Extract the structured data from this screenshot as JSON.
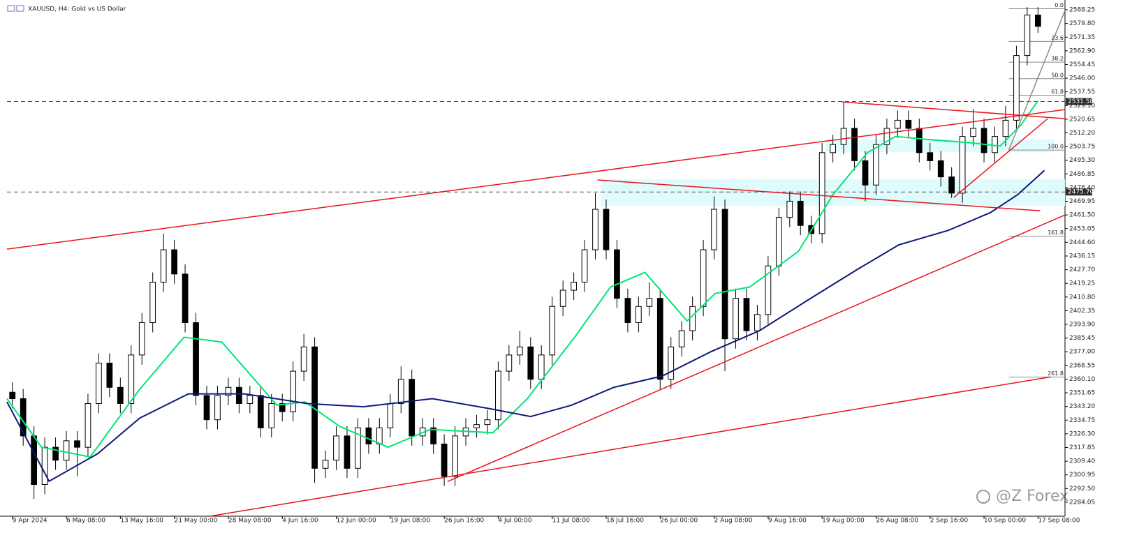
{
  "chart_data": {
    "type": "candlestick",
    "title": "XAUUSD, H4:  Gold vs US Dollar",
    "watermark": "@Z Forex",
    "xlim": [
      -0.5,
      97.5
    ],
    "ylim": [
      2275.4,
      2594.3
    ],
    "xticks": [
      {
        "value": 0,
        "label": "9 Apr 2024"
      },
      {
        "value": 5,
        "label": "6 May 08:00"
      },
      {
        "value": 10,
        "label": "13 May 16:00"
      },
      {
        "value": 15,
        "label": "21 May 00:00"
      },
      {
        "value": 20,
        "label": "28 May 08:00"
      },
      {
        "value": 25,
        "label": "4 Jun 16:00"
      },
      {
        "value": 30,
        "label": "12 Jun 00:00"
      },
      {
        "value": 35,
        "label": "19 Jun 08:00"
      },
      {
        "value": 40,
        "label": "26 Jun 16:00"
      },
      {
        "value": 45,
        "label": "4 Jul 00:00"
      },
      {
        "value": 50,
        "label": "11 Jul 08:00"
      },
      {
        "value": 55,
        "label": "18 Jul 16:00"
      },
      {
        "value": 60,
        "label": "26 Jul 00:00"
      },
      {
        "value": 65,
        "label": "2 Aug 08:00"
      },
      {
        "value": 70,
        "label": "9 Aug 16:00"
      },
      {
        "value": 75,
        "label": "19 Aug 00:00"
      },
      {
        "value": 80,
        "label": "26 Aug 08:00"
      },
      {
        "value": 85,
        "label": "2 Sep 16:00"
      },
      {
        "value": 90,
        "label": "10 Sep 00:00"
      },
      {
        "value": 95,
        "label": "17 Sep 08:00"
      }
    ],
    "yticks": [
      2588.25,
      {
        "value": 2579.8,
        "label": "2579.80"
      },
      2571.35,
      {
        "value": 2562.9,
        "label": "2562.90"
      },
      2554.45,
      {
        "value": 2546,
        "label": "2546.00"
      },
      2537.55,
      {
        "value": 2529.1,
        "label": "2529.10"
      },
      2520.65,
      {
        "value": 2512.2,
        "label": "2512.20"
      },
      2503.75,
      {
        "value": 2495.3,
        "label": "2495.30"
      },
      2486.85,
      {
        "value": 2478.4,
        "label": "2478.40"
      },
      2469.95,
      {
        "value": 2461.5,
        "label": "2461.50"
      },
      2453.05,
      {
        "value": 2444.6,
        "label": "2444.60"
      },
      2436.15,
      {
        "value": 2427.7,
        "label": "2427.70"
      },
      2419.25,
      {
        "value": 2410.8,
        "label": "2410.80"
      },
      2402.35,
      {
        "value": 2393.9,
        "label": "2393.90"
      },
      2385.45,
      {
        "value": 2377,
        "label": "2377.00"
      },
      2368.55,
      {
        "value": 2360.1,
        "label": "2360.10"
      },
      2351.65,
      {
        "value": 2343.2,
        "label": "2343.20"
      },
      2334.75,
      {
        "value": 2326.3,
        "label": "2326.30"
      },
      2317.85,
      {
        "value": 2309.4,
        "label": "2309.40"
      },
      2300.95,
      {
        "value": 2292.5,
        "label": "2292.50"
      },
      2284.05
    ],
    "up_color": "#ffffff",
    "down_color": "#000000",
    "open": [
      2352,
      2348,
      2325,
      2295,
      2318,
      2310,
      2322,
      2318,
      2345,
      2370,
      2355,
      2345,
      2375,
      2395,
      2420,
      2440,
      2425,
      2395,
      2350,
      2335,
      2350,
      2355,
      2345,
      2350,
      2330,
      2345,
      2340,
      2365,
      2380,
      2305,
      2310,
      2325,
      2305,
      2330,
      2320,
      2330,
      2345,
      2360,
      2325,
      2330,
      2320,
      2300,
      2325,
      2330,
      2332,
      2335,
      2365,
      2375,
      2380,
      2360,
      2375,
      2405,
      2415,
      2420,
      2440,
      2465,
      2440,
      2410,
      2395,
      2405,
      2410,
      2360,
      2380,
      2390,
      2405,
      2440,
      2465,
      2385,
      2410,
      2390,
      2400,
      2430,
      2460,
      2470,
      2455,
      2450,
      2500,
      2505,
      2515,
      2495,
      2480,
      2505,
      2515,
      2520,
      2515,
      2500,
      2495,
      2485,
      2475,
      2510,
      2515,
      2500,
      2510,
      2520,
      2560,
      2585
    ],
    "high": [
      2358,
      2354,
      2331,
      2324,
      2324,
      2328,
      2328,
      2351,
      2376,
      2376,
      2361,
      2381,
      2401,
      2426,
      2450,
      2446,
      2431,
      2401,
      2356,
      2356,
      2361,
      2361,
      2356,
      2356,
      2351,
      2351,
      2371,
      2388,
      2386,
      2316,
      2331,
      2331,
      2336,
      2336,
      2336,
      2351,
      2368,
      2366,
      2336,
      2336,
      2326,
      2331,
      2336,
      2338,
      2341,
      2371,
      2381,
      2390,
      2386,
      2381,
      2411,
      2421,
      2426,
      2446,
      2475,
      2471,
      2446,
      2416,
      2411,
      2420,
      2416,
      2386,
      2396,
      2411,
      2446,
      2473,
      2471,
      2416,
      2416,
      2406,
      2436,
      2466,
      2476,
      2476,
      2461,
      2506,
      2511,
      2531,
      2521,
      2501,
      2511,
      2521,
      2526,
      2526,
      2521,
      2506,
      2501,
      2491,
      2516,
      2527,
      2521,
      2516,
      2529,
      2566,
      2590,
      2590
    ],
    "low": [
      2342,
      2319,
      2286,
      2289,
      2304,
      2304,
      2300,
      2312,
      2339,
      2349,
      2339,
      2339,
      2369,
      2389,
      2414,
      2419,
      2389,
      2344,
      2329,
      2329,
      2344,
      2339,
      2339,
      2324,
      2324,
      2334,
      2334,
      2359,
      2296,
      2299,
      2304,
      2299,
      2299,
      2314,
      2314,
      2324,
      2339,
      2319,
      2319,
      2314,
      2294,
      2294,
      2319,
      2324,
      2326,
      2329,
      2359,
      2369,
      2354,
      2354,
      2369,
      2399,
      2409,
      2414,
      2434,
      2434,
      2404,
      2389,
      2389,
      2399,
      2354,
      2354,
      2374,
      2384,
      2399,
      2434,
      2365,
      2379,
      2384,
      2384,
      2394,
      2424,
      2454,
      2449,
      2444,
      2444,
      2494,
      2499,
      2489,
      2470,
      2474,
      2499,
      2509,
      2509,
      2494,
      2489,
      2479,
      2472,
      2469,
      2504,
      2494,
      2494,
      2504,
      2514,
      2554,
      2574
    ],
    "close": [
      2348,
      2325,
      2295,
      2318,
      2310,
      2322,
      2318,
      2345,
      2370,
      2355,
      2345,
      2375,
      2395,
      2420,
      2440,
      2425,
      2395,
      2350,
      2335,
      2350,
      2355,
      2345,
      2350,
      2330,
      2345,
      2340,
      2365,
      2380,
      2305,
      2310,
      2325,
      2305,
      2330,
      2320,
      2330,
      2345,
      2360,
      2325,
      2330,
      2320,
      2300,
      2325,
      2330,
      2332,
      2335,
      2365,
      2375,
      2380,
      2360,
      2375,
      2405,
      2415,
      2420,
      2440,
      2465,
      2440,
      2410,
      2395,
      2405,
      2410,
      2360,
      2380,
      2390,
      2405,
      2440,
      2465,
      2385,
      2410,
      2390,
      2400,
      2430,
      2460,
      2470,
      2455,
      2450,
      2500,
      2505,
      2515,
      2495,
      2480,
      2505,
      2515,
      2520,
      2515,
      2500,
      2495,
      2485,
      2475,
      2510,
      2515,
      2500,
      2510,
      2520,
      2560,
      2585,
      2578
    ],
    "moving_averages": [
      {
        "color": "#00e676",
        "x": [
          -0.5,
          2.7,
          7.2,
          11.7,
          15.9,
          19.4,
          24.5,
          27.1,
          30.3,
          34.8,
          38.7,
          44.5,
          47.7,
          52.2,
          55.4,
          58.6,
          62.5,
          65.1,
          68.3,
          72.8,
          76.0,
          79.2,
          81.8,
          85.0,
          88.9,
          91.5,
          93.4,
          95.0
        ],
        "values": [
          2348,
          2318,
          2312,
          2353,
          2386,
          2383,
          2344,
          2346,
          2331,
          2318,
          2329,
          2327,
          2348,
          2387,
          2417,
          2426,
          2396,
          2413,
          2417,
          2439,
          2474,
          2500,
          2510,
          2508,
          2506,
          2504,
          2517,
          2532
        ]
      },
      {
        "color": "#0d1a7a",
        "x": [
          -0.5,
          3.4,
          7.9,
          11.8,
          16.3,
          21.5,
          27.3,
          32.5,
          38.9,
          44.1,
          48.0,
          51.8,
          55.7,
          60.2,
          64.7,
          69.2,
          73.7,
          78.3,
          82.1,
          86.7,
          90.6,
          93.1,
          95.6
        ],
        "values": [
          2346,
          2297,
          2314,
          2336,
          2351,
          2351,
          2345,
          2343,
          2348,
          2342,
          2337,
          2344,
          2355,
          2362,
          2377,
          2390,
          2409,
          2428,
          2443,
          2452,
          2463,
          2474,
          2489
        ]
      }
    ],
    "zones": [
      {
        "x": [
          75.3,
          96.5
        ],
        "y": [
          2500.3,
          2508.1
        ],
        "color": "#e0fbfc"
      },
      {
        "x": [
          54.5,
          97.5
        ],
        "y": [
          2467.1,
          2483.5
        ],
        "color": "#e0fbfc"
      }
    ],
    "hlines": [
      {
        "value": 2531.58
      },
      {
        "value": 2475.7,
        "label": "2475.70"
      }
    ],
    "trendlines": [
      {
        "x": [
          -0.5,
          97.5
        ],
        "y": [
          2440.4,
          2526.6
        ],
        "color": "#e8141b"
      },
      {
        "x": [
          54.2,
          95.2
        ],
        "y": [
          2483.1,
          2464.1
        ],
        "color": "#e8141b"
      },
      {
        "x": [
          76.8,
          97.5
        ],
        "y": [
          2531.4,
          2521.0
        ],
        "color": "#e8141b"
      },
      {
        "x": [
          40.3,
          97.5
        ],
        "y": [
          2296.8,
          2461.5
        ],
        "color": "#e8141b"
      },
      {
        "x": [
          18.3,
          96.2
        ],
        "y": [
          2275.4,
          2361.5
        ],
        "color": "#e8141b"
      },
      {
        "x": [
          87.2,
          95.9
        ],
        "y": [
          2472.3,
          2521.0
        ],
        "color": "#e8141b"
      },
      {
        "x": [
          92.3,
          97.5
        ],
        "y": [
          2501.6,
          2587.8
        ],
        "color": "#8a8a8a"
      }
    ],
    "fib": {
      "x": [
        92.3,
        97.5
      ],
      "color": "#8a8a8a",
      "levels": [
        {
          "label": "0.0",
          "value": 2588.9
        },
        {
          "label": "23.6",
          "value": 2568.7
        },
        {
          "label": "38.2",
          "value": 2555.9
        },
        {
          "label": "50.0",
          "value": 2545.7
        },
        {
          "label": "61.8",
          "value": 2535.5
        },
        {
          "label": "100.0",
          "value": 2501.6
        },
        {
          "label": "161.8",
          "value": 2448.4
        },
        {
          "label": "261.8",
          "value": 2361.4
        }
      ]
    }
  }
}
